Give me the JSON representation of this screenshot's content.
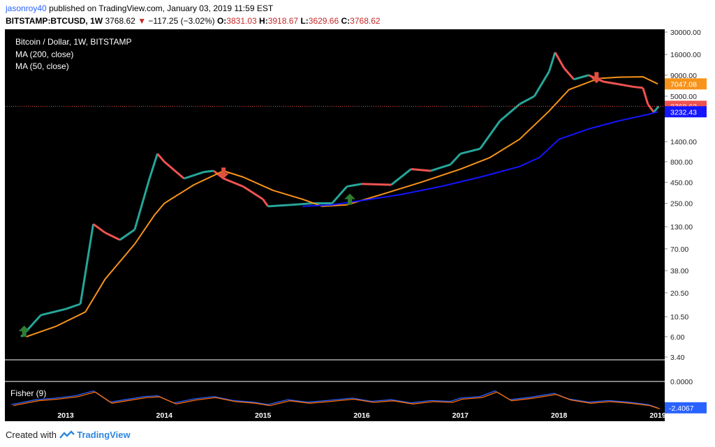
{
  "header": {
    "user": "jasonroy40",
    "published_text": "published on TradingView.com, January 03, 2019 11:59 EST",
    "symbol": "BITSTAMP:BTCUSD, 1W",
    "last_price": "3768.62",
    "change_icon": "triangle-down-icon",
    "change_text": "−117.25 (−3.02%)",
    "open_label": "O:",
    "open": "3831.03",
    "high_label": "H:",
    "high": "3918.67",
    "low_label": "L:",
    "low": "3629.66",
    "close_label": "C:",
    "close": "3768.62"
  },
  "legend": {
    "title": "Bitcoin / Dollar, 1W, BITSTAMP",
    "ma200": "MA (200, close)",
    "ma50": "MA (50, close)",
    "fisher": "Fisher (9)"
  },
  "footer": {
    "created_with": "Created with",
    "brand": "TradingView",
    "logo_icon": "tradingview-logo-icon"
  },
  "colors": {
    "background": "#000000",
    "up": "#26a69a",
    "down": "#ef5350",
    "ma50": "#f7931a",
    "ma200": "#1515ff",
    "arrow_up": "#2e7d32",
    "arrow_down": "#e05040",
    "fisher_a": "#2962ff",
    "fisher_b": "#ff6d00"
  },
  "chart_data": {
    "type": "line",
    "title": "Bitcoin / Dollar, 1W, BITSTAMP",
    "y_scale": "log",
    "ylim": [
      3.4,
      30000
    ],
    "y_ticks": [
      "30000.00",
      "16000.00",
      "9000.00",
      "5000.00",
      "1400.00",
      "800.00",
      "450.00",
      "250.00",
      "130.00",
      "70.00",
      "38.00",
      "20.50",
      "10.50",
      "6.00",
      "3.40"
    ],
    "x_ticks": [
      "2013",
      "2014",
      "2015",
      "2016",
      "2017",
      "2018",
      "2019"
    ],
    "price_labels": [
      {
        "value": 7047.08,
        "text": "7047.08",
        "series": "MA (50, close)"
      },
      {
        "value": 3768.62,
        "text": "3768.62",
        "series": "last price"
      },
      {
        "value": 3232.43,
        "text": "3232.43",
        "series": "MA (200, close)"
      }
    ],
    "series": [
      {
        "name": "Bitcoin / Dollar",
        "x": [
          2012.55,
          2012.75,
          2013.0,
          2013.15,
          2013.28,
          2013.4,
          2013.55,
          2013.7,
          2013.85,
          2013.93,
          2014.0,
          2014.2,
          2014.4,
          2014.5,
          2014.6,
          2014.8,
          2015.0,
          2015.05,
          2015.3,
          2015.5,
          2015.7,
          2015.85,
          2016.0,
          2016.3,
          2016.5,
          2016.7,
          2016.9,
          2017.0,
          2017.2,
          2017.4,
          2017.6,
          2017.75,
          2017.9,
          2017.96,
          2018.05,
          2018.15,
          2018.3,
          2018.45,
          2018.6,
          2018.75,
          2018.85,
          2018.9,
          2018.96,
          2019.01
        ],
        "values": [
          6,
          11,
          13,
          15,
          140,
          110,
          90,
          120,
          500,
          1000,
          800,
          500,
          600,
          620,
          500,
          400,
          280,
          230,
          240,
          250,
          250,
          400,
          430,
          420,
          650,
          620,
          740,
          1000,
          1150,
          2500,
          4000,
          5000,
          10000,
          17000,
          11000,
          8000,
          9000,
          7500,
          7000,
          6500,
          6300,
          4000,
          3200,
          3768.62
        ]
      },
      {
        "name": "MA (50, close)",
        "x": [
          2012.6,
          2012.9,
          2013.2,
          2013.4,
          2013.7,
          2013.9,
          2014.0,
          2014.3,
          2014.6,
          2014.8,
          2015.1,
          2015.4,
          2015.6,
          2015.85,
          2016.2,
          2016.6,
          2017.0,
          2017.3,
          2017.6,
          2017.9,
          2018.1,
          2018.4,
          2018.6,
          2018.85,
          2019.0
        ],
        "values": [
          6,
          8,
          12,
          30,
          80,
          180,
          250,
          420,
          620,
          520,
          360,
          280,
          230,
          240,
          320,
          450,
          650,
          900,
          1500,
          3300,
          6000,
          8200,
          8500,
          8600,
          7047.08
        ]
      },
      {
        "name": "MA (200, close)",
        "x": [
          2015.4,
          2015.7,
          2016.0,
          2016.4,
          2016.8,
          2017.2,
          2017.6,
          2017.8,
          2018.0,
          2018.3,
          2018.6,
          2018.9,
          2019.0
        ],
        "values": [
          230,
          240,
          270,
          320,
          400,
          520,
          700,
          900,
          1500,
          2000,
          2500,
          3000,
          3232.43
        ]
      }
    ],
    "annotations": [
      {
        "type": "arrow_up",
        "x": 2012.58,
        "y": 6
      },
      {
        "type": "arrow_down",
        "x": 2014.6,
        "y": 680
      },
      {
        "type": "arrow_up",
        "x": 2015.88,
        "y": 240
      },
      {
        "type": "arrow_down",
        "x": 2018.38,
        "y": 9800
      }
    ],
    "indicator": {
      "name": "Fisher (9)",
      "ylim": [
        -2.6,
        0.8
      ],
      "y_ticks": [
        "0.0000"
      ],
      "last_value": -2.4067,
      "last_label": "-2.4067",
      "x": [
        2012.45,
        2012.7,
        2012.9,
        2013.1,
        2013.28,
        2013.45,
        2013.6,
        2013.8,
        2013.93,
        2014.1,
        2014.3,
        2014.5,
        2014.7,
        2014.9,
        2015.05,
        2015.25,
        2015.45,
        2015.65,
        2015.9,
        2016.1,
        2016.3,
        2016.5,
        2016.7,
        2016.9,
        2017.0,
        2017.2,
        2017.35,
        2017.5,
        2017.7,
        2017.95,
        2018.1,
        2018.3,
        2018.5,
        2018.7,
        2018.9,
        2019.0
      ],
      "values": [
        -2.0,
        -1.4,
        -1.2,
        -0.9,
        -0.3,
        -1.7,
        -1.4,
        -1.0,
        -0.9,
        -1.8,
        -1.3,
        -1.0,
        -1.5,
        -1.7,
        -2.0,
        -1.4,
        -1.7,
        -1.5,
        -1.2,
        -1.6,
        -1.4,
        -1.8,
        -1.5,
        -1.6,
        -1.2,
        -1.0,
        -0.3,
        -1.4,
        -1.1,
        -0.6,
        -1.3,
        -1.7,
        -1.5,
        -1.7,
        -2.0,
        -2.4067
      ]
    }
  }
}
